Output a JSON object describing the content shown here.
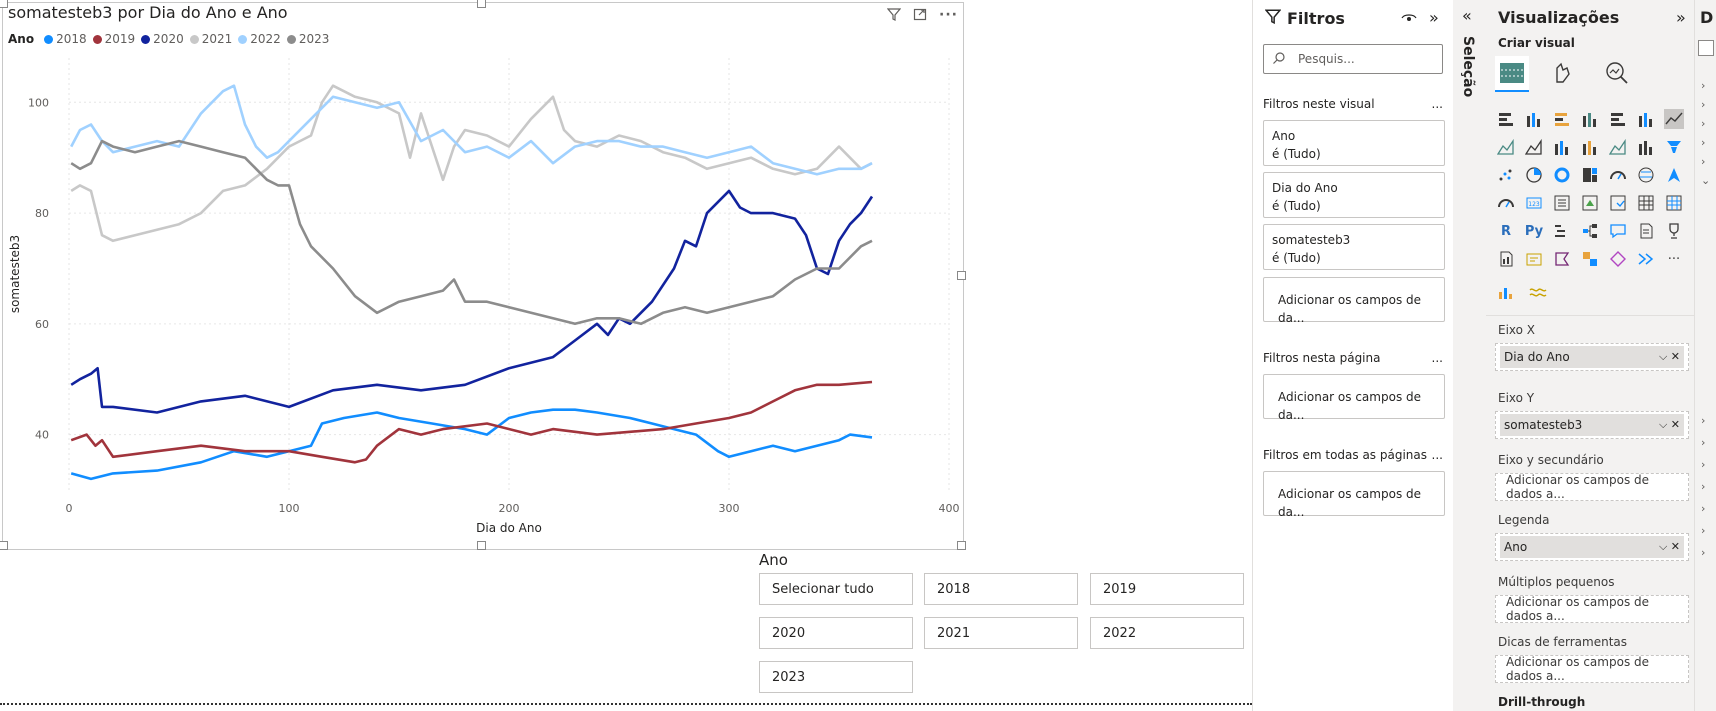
{
  "chart": {
    "title": "somatesteb3 por Dia do Ano e Ano",
    "legend_title": "Ano",
    "xlabel": "Dia do Ano",
    "ylabel": "somatesteb3"
  },
  "chart_data": {
    "type": "line",
    "title": "somatesteb3 por Dia do Ano e Ano",
    "xlabel": "Dia do Ano",
    "ylabel": "somatesteb3",
    "xlim": [
      0,
      400
    ],
    "ylim": [
      30,
      108
    ],
    "xticks": [
      0,
      100,
      200,
      300,
      400
    ],
    "yticks": [
      40,
      60,
      80,
      100
    ],
    "grid": true,
    "legend_position": "top-left",
    "series": [
      {
        "name": "2018",
        "color": "#118DFF",
        "x": [
          1,
          10,
          20,
          40,
          60,
          75,
          90,
          100,
          110,
          115,
          125,
          140,
          150,
          165,
          180,
          190,
          200,
          210,
          220,
          230,
          240,
          255,
          265,
          275,
          285,
          295,
          300,
          310,
          320,
          330,
          340,
          350,
          355,
          365
        ],
        "y": [
          33,
          32,
          33,
          33.5,
          35,
          37,
          36,
          37,
          38,
          42,
          43,
          44,
          43,
          42,
          41,
          40,
          43,
          44,
          44.5,
          44.5,
          44,
          43,
          42,
          41,
          40,
          37,
          36,
          37,
          38,
          37,
          38,
          39,
          40,
          39.5
        ]
      },
      {
        "name": "2019",
        "color": "#A1343C",
        "x": [
          1,
          8,
          12,
          15,
          20,
          40,
          60,
          80,
          100,
          115,
          130,
          135,
          140,
          150,
          160,
          170,
          190,
          210,
          220,
          240,
          255,
          270,
          285,
          300,
          310,
          320,
          330,
          340,
          350,
          365
        ],
        "y": [
          39,
          40,
          38,
          39,
          36,
          37,
          38,
          37,
          37,
          36,
          35,
          35.5,
          38,
          41,
          40,
          41,
          42,
          40,
          41,
          40,
          40.5,
          41,
          42,
          43,
          44,
          46,
          48,
          49,
          49,
          49.5
        ]
      },
      {
        "name": "2020",
        "color": "#12239E",
        "x": [
          1,
          5,
          10,
          13,
          15,
          20,
          40,
          60,
          80,
          100,
          120,
          140,
          160,
          180,
          200,
          220,
          230,
          240,
          245,
          250,
          255,
          265,
          275,
          280,
          285,
          290,
          300,
          305,
          310,
          320,
          330,
          335,
          340,
          345,
          350,
          355,
          360,
          365
        ],
        "y": [
          49,
          50,
          51,
          52,
          45,
          45,
          44,
          46,
          47,
          45,
          48,
          49,
          48,
          49,
          52,
          54,
          57,
          60,
          58,
          61,
          60,
          64,
          70,
          75,
          74,
          80,
          84,
          81,
          80,
          80,
          79,
          76,
          70,
          69,
          75,
          78,
          80,
          83
        ]
      },
      {
        "name": "2021",
        "color": "#C8C8C8",
        "x": [
          1,
          5,
          10,
          15,
          20,
          30,
          40,
          50,
          60,
          70,
          80,
          90,
          100,
          110,
          115,
          120,
          130,
          140,
          150,
          155,
          160,
          170,
          175,
          180,
          190,
          200,
          210,
          220,
          225,
          230,
          240,
          250,
          260,
          270,
          280,
          290,
          300,
          310,
          320,
          330,
          340,
          350,
          355,
          360,
          365
        ],
        "y": [
          84,
          85,
          84,
          76,
          75,
          76,
          77,
          78,
          80,
          84,
          85,
          88,
          92,
          94,
          100,
          103,
          101,
          100,
          98,
          90,
          98,
          86,
          92,
          95,
          94,
          92,
          97,
          101,
          95,
          93,
          92,
          94,
          93,
          91,
          90,
          88,
          89,
          90,
          88,
          87,
          88,
          92,
          90,
          88,
          89
        ]
      },
      {
        "name": "2022",
        "color": "#A0D1FF",
        "x": [
          1,
          5,
          10,
          15,
          20,
          30,
          40,
          50,
          60,
          65,
          70,
          75,
          80,
          85,
          90,
          95,
          100,
          110,
          120,
          130,
          140,
          150,
          160,
          170,
          180,
          190,
          200,
          210,
          220,
          230,
          240,
          250,
          260,
          270,
          280,
          290,
          300,
          310,
          320,
          330,
          340,
          350,
          360,
          365
        ],
        "y": [
          92,
          95,
          96,
          93,
          91,
          92,
          93,
          92,
          98,
          100,
          102,
          103,
          96,
          92,
          90,
          91,
          93,
          97,
          101,
          100,
          99,
          100,
          93,
          95,
          91,
          92,
          90,
          93,
          89,
          92,
          93,
          93,
          92,
          92,
          91,
          90,
          91,
          92,
          89,
          88,
          87,
          88,
          88,
          89
        ]
      },
      {
        "name": "2023",
        "color": "#8C8C8C",
        "x": [
          1,
          5,
          10,
          15,
          20,
          30,
          40,
          50,
          60,
          70,
          80,
          85,
          90,
          95,
          100,
          105,
          110,
          120,
          130,
          140,
          150,
          160,
          170,
          175,
          180,
          190,
          200,
          210,
          220,
          230,
          240,
          250,
          260,
          270,
          280,
          290,
          300,
          310,
          320,
          330,
          340,
          350,
          360,
          365
        ],
        "y": [
          89,
          88,
          89,
          93,
          92,
          91,
          92,
          93,
          92,
          91,
          90,
          88,
          86,
          85,
          85,
          78,
          74,
          70,
          65,
          62,
          64,
          65,
          66,
          68,
          64,
          64,
          63,
          62,
          61,
          60,
          61,
          61,
          60,
          62,
          63,
          62,
          63,
          64,
          65,
          68,
          70,
          70,
          74,
          75
        ]
      }
    ]
  },
  "visual_icons": [
    "filter-icon",
    "focus-mode-icon",
    "more-options-icon"
  ],
  "slicer": {
    "title": "Ano",
    "options": [
      "Selecionar tudo",
      "2018",
      "2019",
      "2020",
      "2021",
      "2022",
      "2023"
    ]
  },
  "filters": {
    "title": "Filtros",
    "search_placeholder": "Pesquis...",
    "section_visual": "Filtros neste visual",
    "section_page": "Filtros nesta página",
    "section_all": "Filtros em todas as páginas",
    "more": "...",
    "cards": [
      {
        "field": "Ano",
        "value": "é (Tudo)"
      },
      {
        "field": "Dia do Ano",
        "value": "é (Tudo)"
      },
      {
        "field": "somatesteb3",
        "value": "é (Tudo)"
      }
    ],
    "add_fields": "Adicionar os campos de da..."
  },
  "selection_pane": {
    "label": "Seleção"
  },
  "visualizations": {
    "title": "Visualizações",
    "create_visual": "Criar visual",
    "wells": {
      "x_axis_label": "Eixo X",
      "x_axis_field": "Dia do Ano",
      "y_axis_label": "Eixo Y",
      "y_axis_field": "somatesteb3",
      "secondary_label": "Eixo y secundário",
      "add_fields": "Adicionar os campos de dados a...",
      "legend_label": "Legenda",
      "legend_field": "Ano",
      "small_multiples_label": "Múltiplos pequenos",
      "tooltips_label": "Dicas de ferramentas",
      "drillthrough_label": "Drill-through"
    },
    "gallery_text": {
      "r": "R",
      "py": "Py",
      "more": "···"
    }
  },
  "data_pane": {
    "label": "D"
  }
}
